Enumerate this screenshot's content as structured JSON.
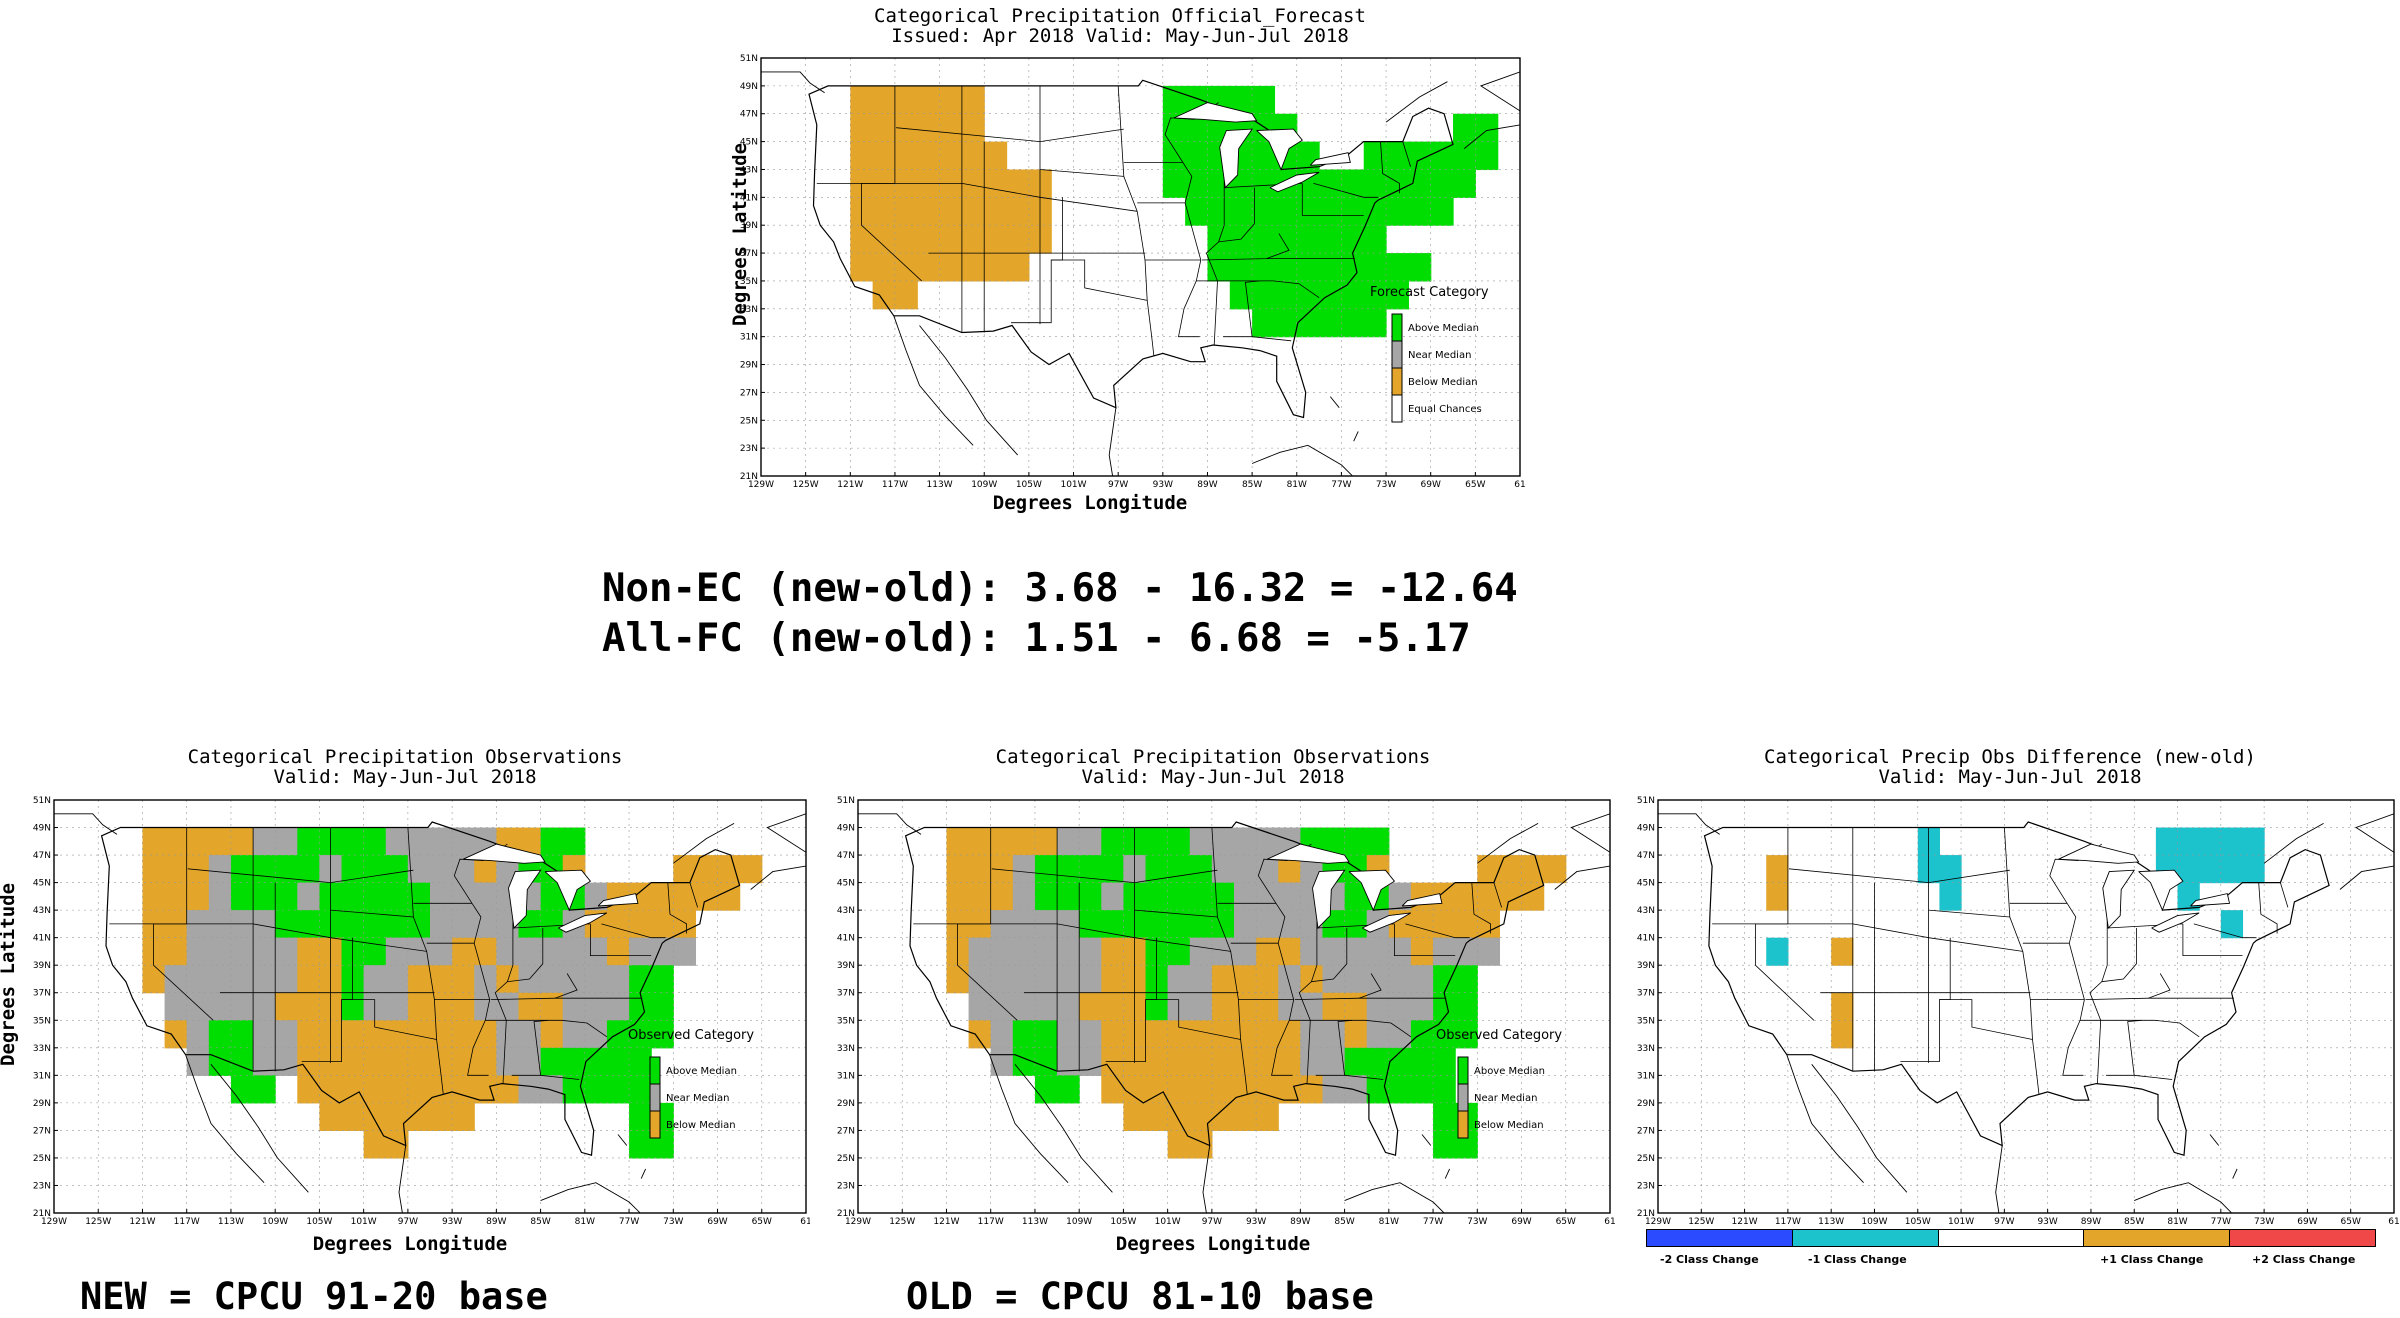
{
  "colors": {
    "above": "#00dd00",
    "near": "#a6a6a6",
    "below": "#e3a62a",
    "ec": "#ffffff",
    "minus2": "#2a4bff",
    "minus1": "#1cc3cc",
    "zero": "#ffffff",
    "plus1": "#e3a62a",
    "plus2": "#f04848"
  },
  "lat_ticks": [
    "51N",
    "49N",
    "47N",
    "45N",
    "43N",
    "41N",
    "39N",
    "37N",
    "35N",
    "33N",
    "31N",
    "29N",
    "27N",
    "25N",
    "23N",
    "21N"
  ],
  "lon_ticks": [
    "129W",
    "125W",
    "121W",
    "117W",
    "113W",
    "109W",
    "105W",
    "101W",
    "97W",
    "93W",
    "89W",
    "85W",
    "81W",
    "77W",
    "73W",
    "69W",
    "65W",
    "61"
  ],
  "forecast": {
    "title1": "Categorical Precipitation Official_Forecast",
    "title2": "Issued: Apr 2018 Valid: May-Jun-Jul 2018",
    "ylabel": "Degrees Latitude",
    "xlabel": "Degrees Longitude",
    "legend_title": "Forecast Category",
    "legend": [
      "Above Median",
      "Near Median",
      "Below Median",
      "Equal Chances"
    ]
  },
  "stats": {
    "line1": "Non-EC (new-old): 3.68 - 16.32 = -12.64",
    "line2": "All-FC (new-old): 1.51 - 6.68 = -5.17"
  },
  "obs_new": {
    "title1": "Categorical Precipitation Observations",
    "title2": "Valid: May-Jun-Jul 2018",
    "ylabel": "Degrees Latitude",
    "xlabel": "Degrees Longitude",
    "legend_title": "Observed Category",
    "legend": [
      "Above Median",
      "Near Median",
      "Below Median"
    ],
    "caption": "NEW = CPCU 91-20 base"
  },
  "obs_old": {
    "title1": "Categorical Precipitation Observations",
    "title2": "Valid: May-Jun-Jul 2018",
    "ylabel": "Degrees Latitude",
    "xlabel": "Degrees Longitude",
    "legend_title": "Observed Category",
    "legend": [
      "Above Median",
      "Near Median",
      "Below Median"
    ],
    "caption": "OLD = CPCU 81-10 base"
  },
  "diff": {
    "title1": "Categorical Precip Obs Difference (new-old)",
    "title2": "Valid: May-Jun-Jul 2018",
    "scale": [
      "-2 Class Change",
      "-1 Class Change",
      "+1 Class Change",
      "+2 Class Change"
    ]
  },
  "grid": {
    "cell_deg": 2,
    "forecast_cells": [
      "...............................",
      "..BBBBBB........AAAAA..........",
      "..BBBBBB........AAAAAA.......AA",
      "..BBBBBBB.......AAAAAAA..AAAAAA",
      "..BBBBBBBBB.....AAAAAAAAAAAAAA.",
      "..BBBBBBBBB......AAAAAAAAAAAA..",
      "..BBBBBBBBB.......AAAAAAAA.....",
      "..BBBBBBBB........AAAAAAAAAA...",
      "...BB..............AAAAAAAA....",
      "....................AAAAAA.....",
      "...............................",
      "...............................",
      "...............................",
      "..............................."
    ],
    "obs_new_cells": [
      "...............................",
      "..BBBBBNNAAAANNNNNBBAA.........",
      "..BBBNAAAANAAANNNBNAAB....BBBB.",
      "..BBBNAAANAAAAANNNNNAANBBBBBB..",
      "..BBNNNNAAAAAAANNNNAANBBBBB....",
      "..BBNNNNNBBAANNNBBNNNNNBNNN....",
      "..BNNNNNNBBANNBBBNBNNNNNAA.....",
      "...NNNNNBBBANNBBBNNBBNNNAA.....",
      "...BNAANNBBBBBBBBBNNBNNAAA.....",
      "....NAANNBBBBBBBBBNNAAAAA......",
      "......AA.BBBBBBBBBBNNAAAA......",
      "..........BBBBBBB.......AA.....",
      "............BB..........AA.....",
      "..............................."
    ],
    "obs_old_cells": [
      "...............................",
      "..BBBBBNNAAAANNNNNAAAA.........",
      "..BBBNAAAANAAANNNBNAAB....BBBB.",
      "..BBBNAAANAAAAANNNNNAANBBBBBB..",
      "..BBNNNNAAAAAAANNNNAANBBBBB....",
      "..BNNNNNNBBAANNNBBNNNNNBNNN....",
      "..BNNNNNNBBANNBBBNBNNNNNAA.....",
      "...NNNNNBBBANNBBBNNBBNNNAA.....",
      "...BNAANNBBBBBBBBBNNBNNAAA.....",
      "....NAANNBBBBBBBBBNNAAAAA......",
      "......AA.BBBBBBBBBBNNAAAA......",
      "..........BBBBBBB.......AA.....",
      "............BB..........AA.....",
      "..............................."
    ],
    "diff_cells": [
      "...............................",
      "..........1..........11111.....",
      "...+......11.........11111.....",
      "...+.......1..........1........",
      "........................1......",
      "...1..+........................",
      "...............................",
      "......+........................",
      "......+........................",
      "...............................",
      "...............................",
      "...............................",
      "...............................",
      "..............................."
    ]
  }
}
